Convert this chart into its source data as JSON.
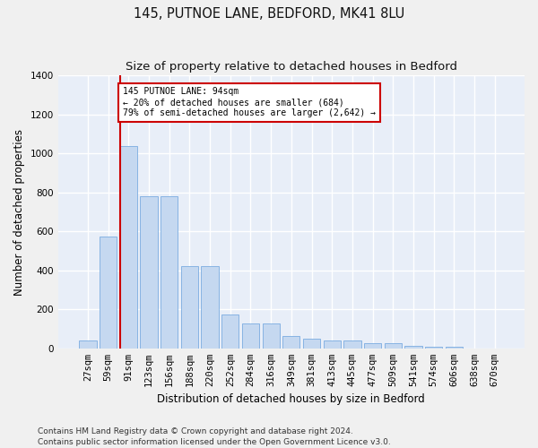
{
  "title": "145, PUTNOE LANE, BEDFORD, MK41 8LU",
  "subtitle": "Size of property relative to detached houses in Bedford",
  "xlabel": "Distribution of detached houses by size in Bedford",
  "ylabel": "Number of detached properties",
  "bar_values": [
    40,
    575,
    1040,
    780,
    780,
    420,
    420,
    175,
    130,
    130,
    65,
    50,
    42,
    40,
    25,
    25,
    15,
    10,
    8,
    0,
    0
  ],
  "categories": [
    "27sqm",
    "59sqm",
    "91sqm",
    "123sqm",
    "156sqm",
    "188sqm",
    "220sqm",
    "252sqm",
    "284sqm",
    "316sqm",
    "349sqm",
    "381sqm",
    "413sqm",
    "445sqm",
    "477sqm",
    "509sqm",
    "541sqm",
    "574sqm",
    "606sqm",
    "638sqm",
    "670sqm"
  ],
  "bar_color": "#c5d8f0",
  "bar_edge_color": "#7aace0",
  "vline_color": "#cc0000",
  "vline_index": 2,
  "annotation_text": "145 PUTNOE LANE: 94sqm\n← 20% of detached houses are smaller (684)\n79% of semi-detached houses are larger (2,642) →",
  "annotation_box_facecolor": "#ffffff",
  "annotation_box_edgecolor": "#cc0000",
  "ylim": [
    0,
    1400
  ],
  "yticks": [
    0,
    200,
    400,
    600,
    800,
    1000,
    1200,
    1400
  ],
  "bg_color": "#e8eef8",
  "grid_color": "#ffffff",
  "fig_facecolor": "#f0f0f0",
  "footer_text": "Contains HM Land Registry data © Crown copyright and database right 2024.\nContains public sector information licensed under the Open Government Licence v3.0.",
  "title_fontsize": 10.5,
  "subtitle_fontsize": 9.5,
  "axis_label_fontsize": 8.5,
  "tick_fontsize": 7.5,
  "footer_fontsize": 6.5
}
